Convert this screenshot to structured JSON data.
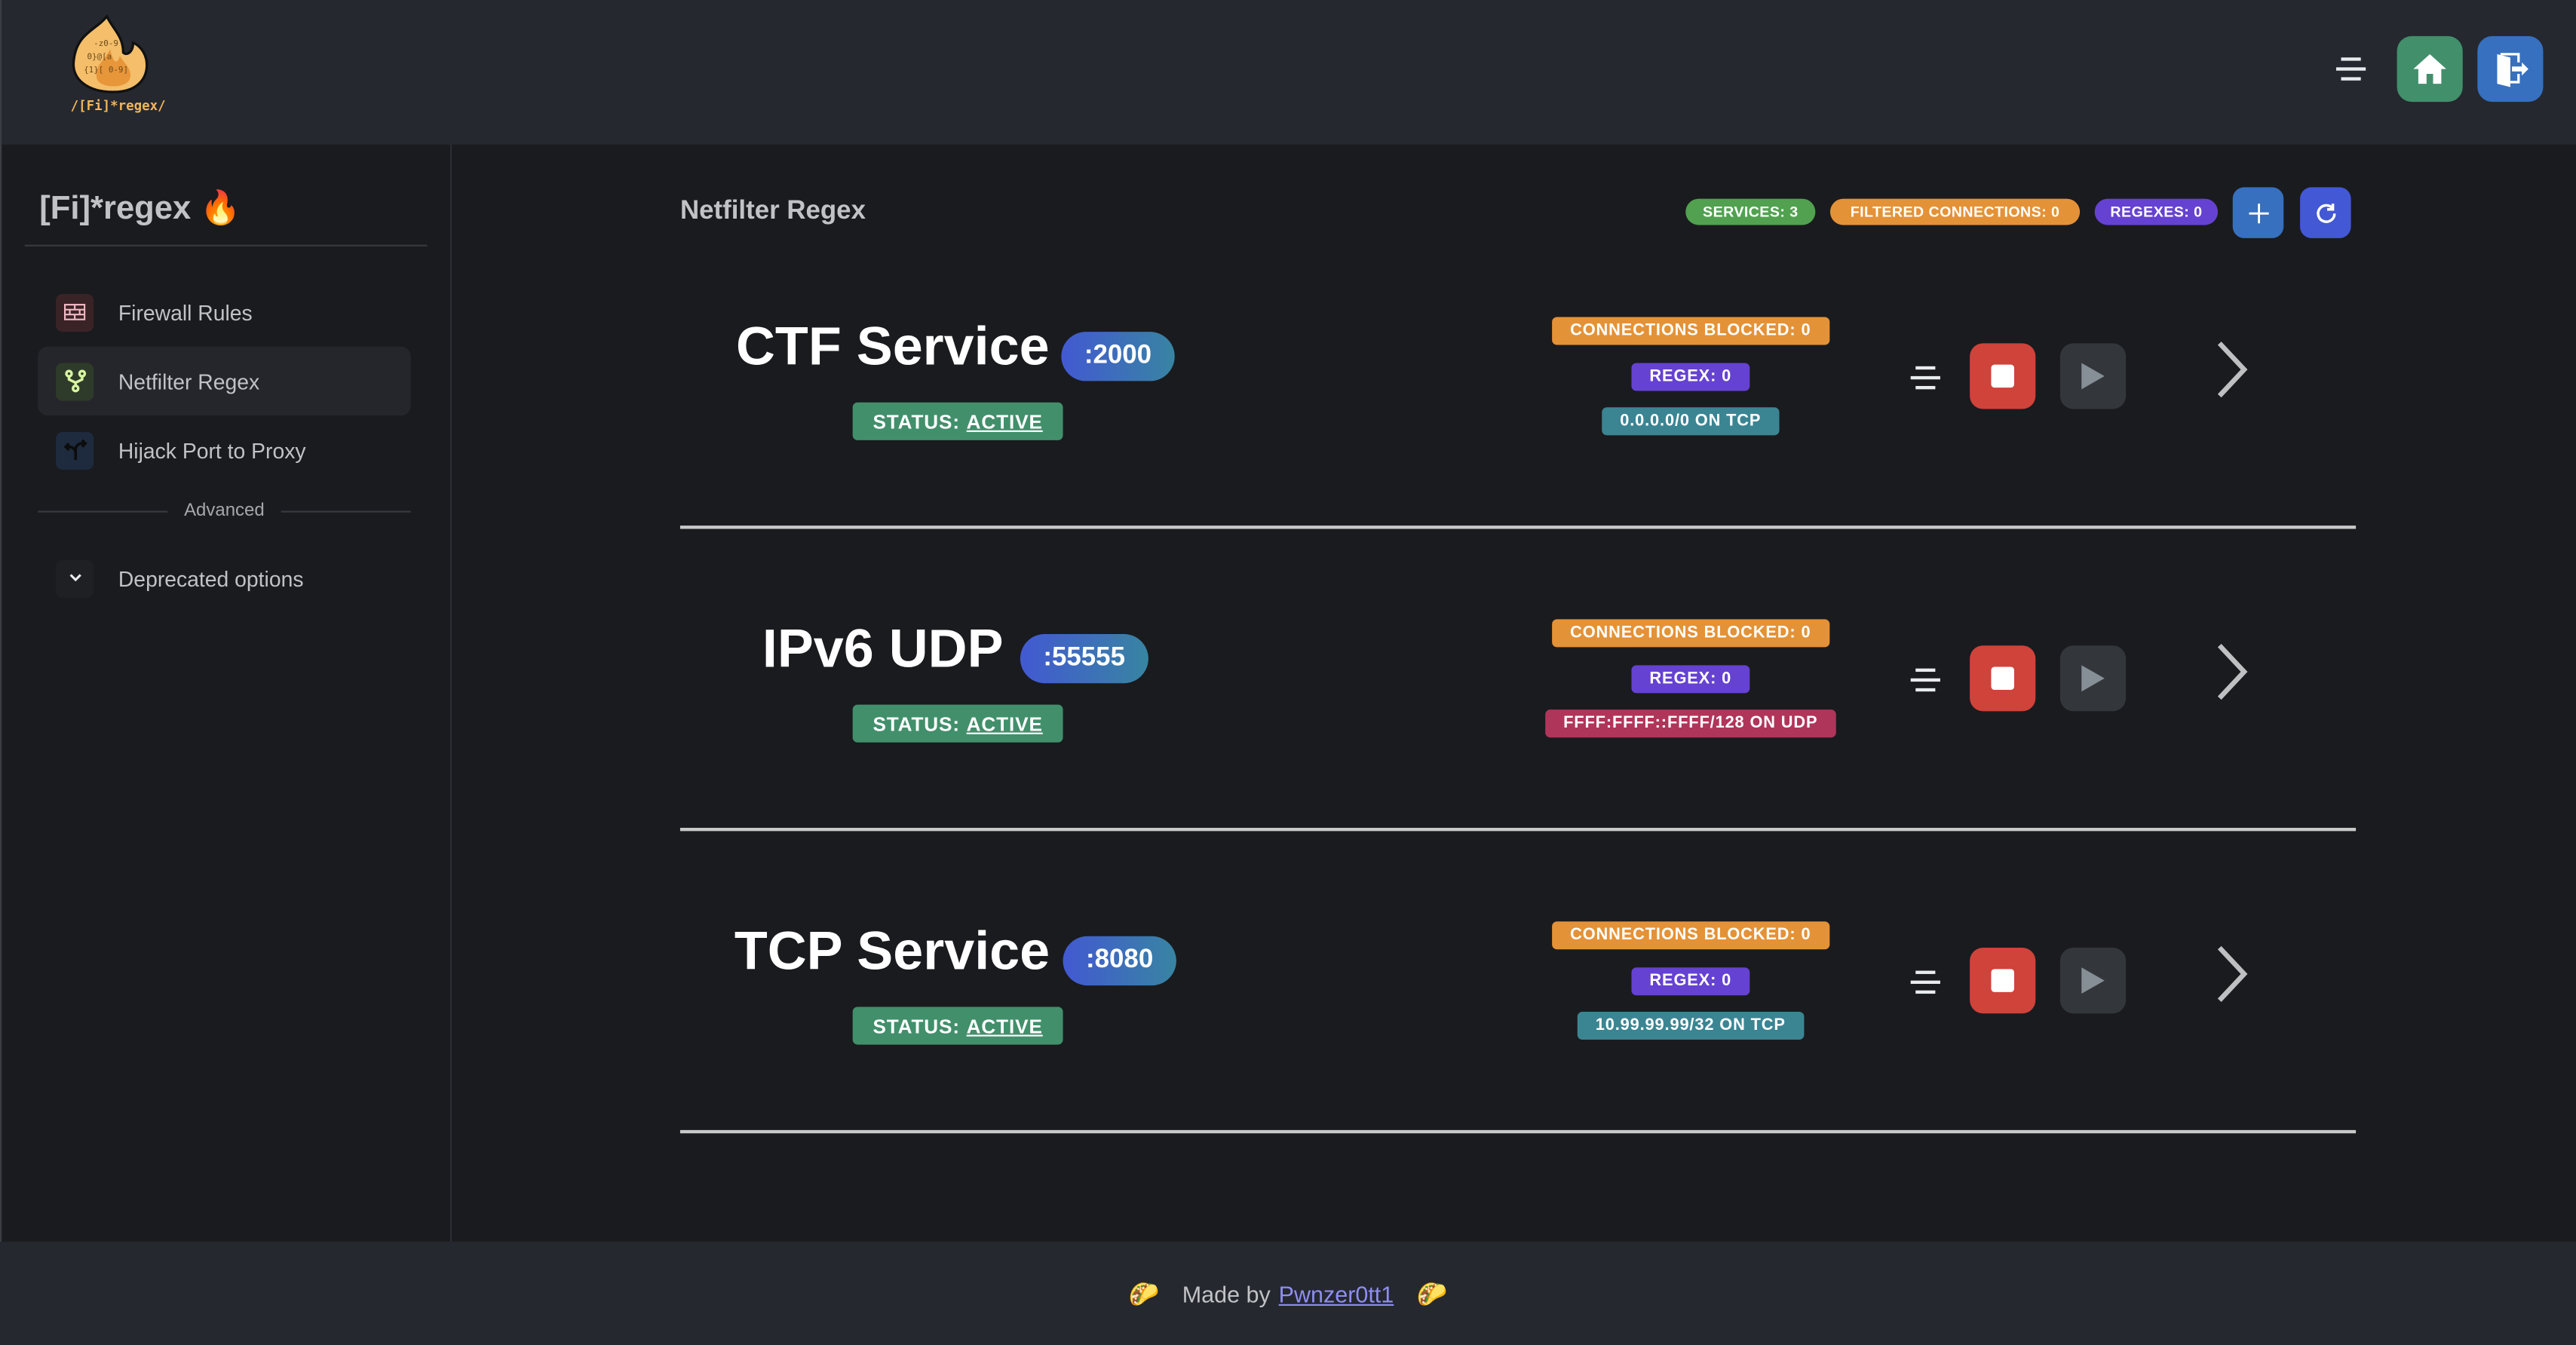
{
  "header": {
    "logo_text": "/[Fi]*regex/",
    "menu_icon": "menu-lines-icon",
    "home_icon": "home-icon",
    "logout_icon": "logout-door-icon",
    "colors": {
      "home": "#428f6b",
      "logout": "#3670bf",
      "bg": "#25282f"
    }
  },
  "sidebar": {
    "title": "[Fi]*regex 🔥",
    "items": [
      {
        "label": "Firewall Rules",
        "icon": "brick-wall-icon",
        "icon_bg": "#3a2326",
        "icon_color": "#f0b9c3",
        "active": false
      },
      {
        "label": "Netfilter Regex",
        "icon": "git-fork-icon",
        "icon_bg": "#2f3b2a",
        "icon_color": "#d8f5a2",
        "active": true
      },
      {
        "label": "Hijack Port to Proxy",
        "icon": "split-arrows-icon",
        "icon_bg": "#1e2a3d",
        "icon_color": "#0c0c0c",
        "active": false
      }
    ],
    "section_label": "Advanced",
    "deprecated_label": "Deprecated options"
  },
  "main": {
    "title": "Netfilter Regex",
    "stats": [
      {
        "label": "SERVICES: 3",
        "color": "#51a150"
      },
      {
        "label": "FILTERED CONNECTIONS: 0",
        "color": "#e49237"
      },
      {
        "label": "REGEXES: 0",
        "color": "#6542d1"
      }
    ],
    "add_icon": "plus-icon",
    "refresh_icon": "refresh-icon",
    "services": [
      {
        "name": "CTF Service",
        "port": ":2000",
        "status_prefix": "STATUS:",
        "status": "ACTIVE",
        "blocked": "CONNECTIONS BLOCKED: 0",
        "regex": "REGEX: 0",
        "address": "0.0.0.0/0 ON TCP",
        "address_color": "#3b8593"
      },
      {
        "name": "IPv6 UDP",
        "port": ":55555",
        "status_prefix": "STATUS:",
        "status": "ACTIVE",
        "blocked": "CONNECTIONS BLOCKED: 0",
        "regex": "REGEX: 0",
        "address": "FFFF:FFFF::FFFF/128 ON UDP",
        "address_color": "#b0355a"
      },
      {
        "name": "TCP Service",
        "port": ":8080",
        "status_prefix": "STATUS:",
        "status": "ACTIVE",
        "blocked": "CONNECTIONS BLOCKED: 0",
        "regex": "REGEX: 0",
        "address": "10.99.99.99/32 ON TCP",
        "address_color": "#3b8593"
      }
    ]
  },
  "footer": {
    "prefix": "Made by",
    "author": "Pwnzer0tt1",
    "decor_icon": "taco-icon"
  }
}
